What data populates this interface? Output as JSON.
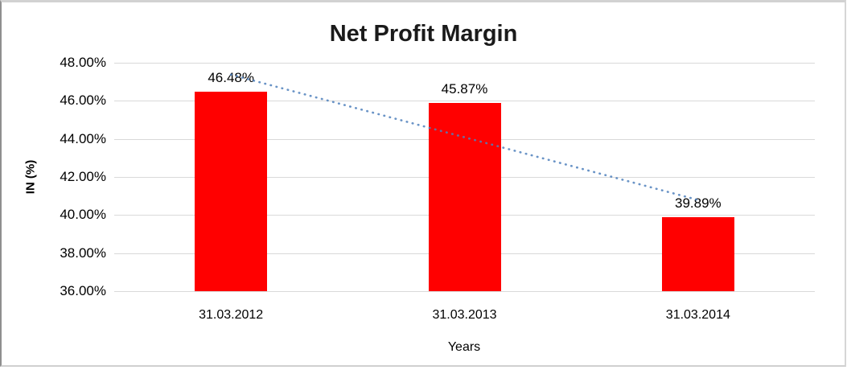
{
  "chart_data": {
    "type": "bar",
    "title": "Net Profit Margin",
    "xlabel": "Years",
    "ylabel": "IN (%)",
    "categories": [
      "31.03.2012",
      "31.03.2013",
      "31.03.2014"
    ],
    "values": [
      46.48,
      45.87,
      39.89
    ],
    "data_labels": [
      "46.48%",
      "45.87%",
      "39.89%"
    ],
    "ylim": [
      36,
      48
    ],
    "ytick_step": 2,
    "ytick_labels": [
      "48.00%",
      "46.00%",
      "44.00%",
      "42.00%",
      "40.00%",
      "38.00%",
      "36.00%"
    ],
    "grid": true,
    "legend": "none",
    "bar_color": "#FF0000",
    "gridline_color": "#D9D9D9",
    "trendline": {
      "type": "linear",
      "style": "dotted",
      "color": "#4F81BD",
      "fit_values_at_first_last_category": [
        47.38,
        40.79
      ]
    }
  }
}
